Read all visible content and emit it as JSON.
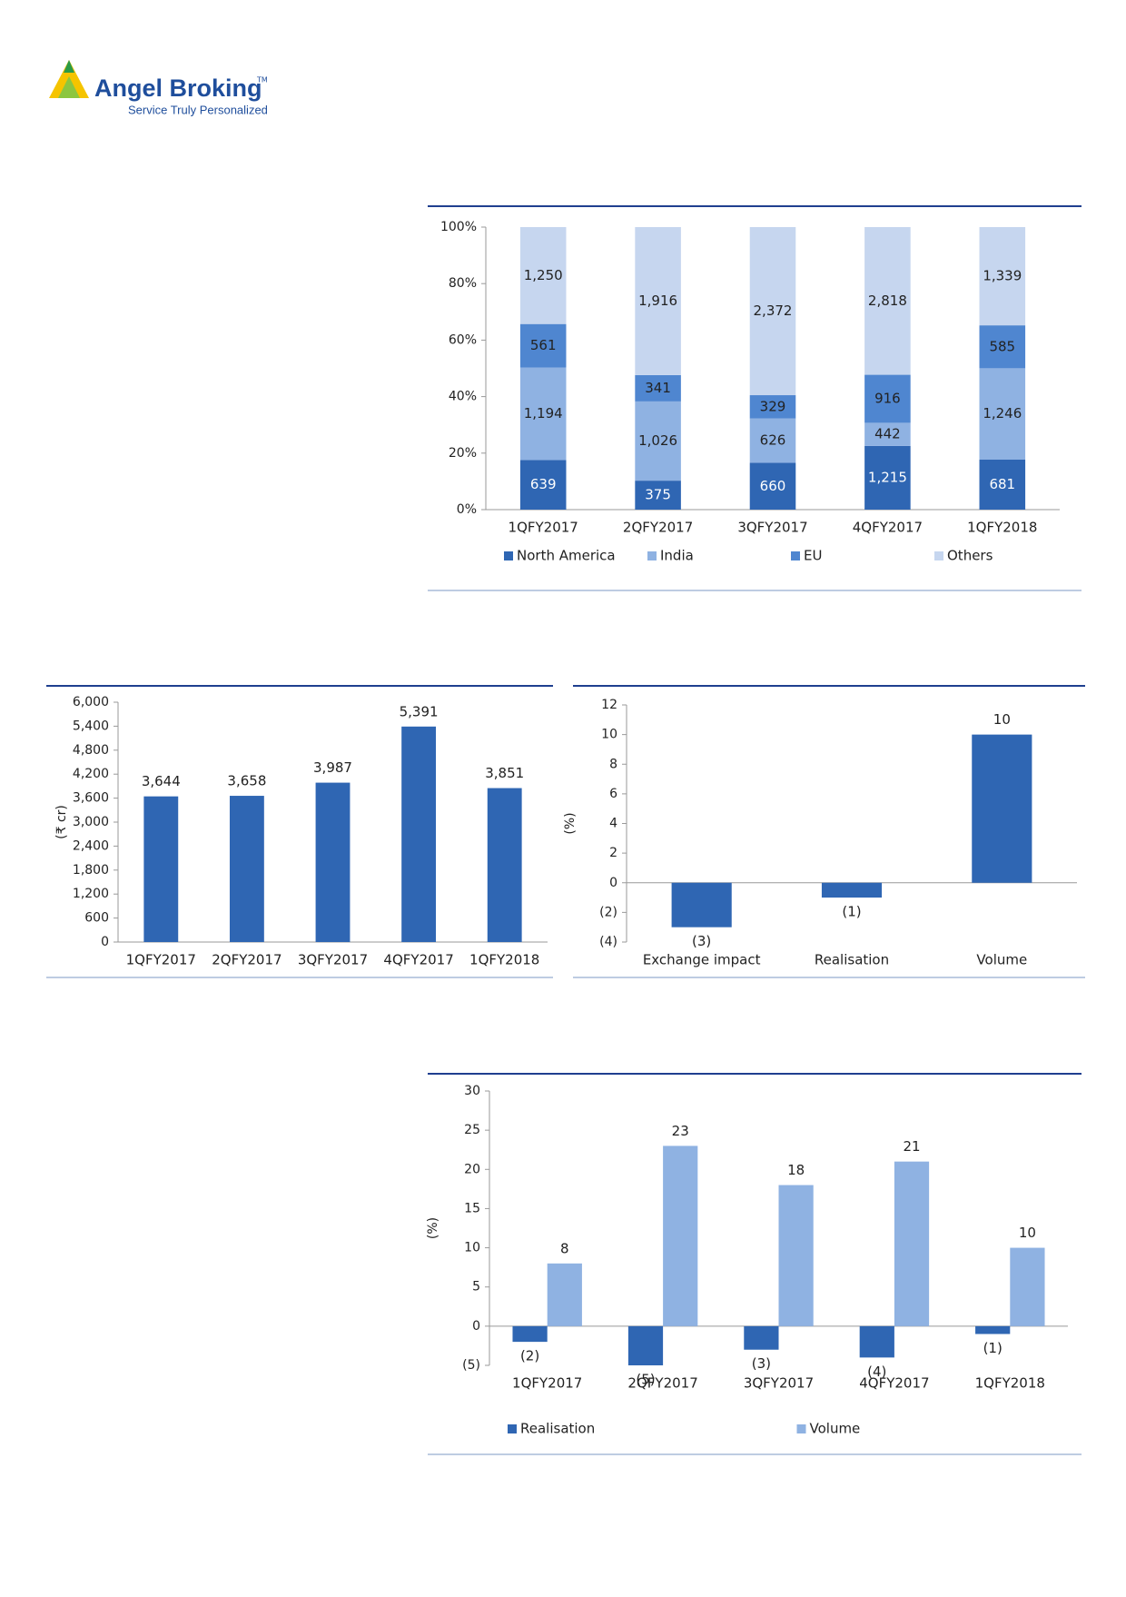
{
  "header": {
    "brand": "Angel Broking",
    "trademark": "TM",
    "tagline": "Service Truly Personalized"
  },
  "chart_data": [
    {
      "type": "stacked_percent_bar",
      "categories": [
        "1QFY2017",
        "2QFY2017",
        "3QFY2017",
        "4QFY2017",
        "1QFY2018"
      ],
      "series": [
        {
          "name": "North America",
          "color": "#2f66b3",
          "values": [
            639,
            375,
            660,
            1215,
            681
          ],
          "value_labels": [
            "639",
            "375",
            "660",
            "1,215",
            "681"
          ]
        },
        {
          "name": "India",
          "color": "#8fb2e2",
          "values": [
            1194,
            1026,
            626,
            442,
            1246
          ],
          "value_labels": [
            "1,194",
            "1,026",
            "626",
            "442",
            "1,246"
          ]
        },
        {
          "name": "EU",
          "color": "#4f86d0",
          "values": [
            561,
            341,
            329,
            916,
            585
          ],
          "value_labels": [
            "561",
            "341",
            "329",
            "916",
            "585"
          ]
        },
        {
          "name": "Others",
          "color": "#c6d6ef",
          "values": [
            1250,
            1916,
            2372,
            2818,
            1339
          ],
          "value_labels": [
            "1,250",
            "1,916",
            "2,372",
            "2,818",
            "1,339"
          ]
        }
      ],
      "ylim": [
        0,
        100
      ],
      "yticks": [
        {
          "value": 0,
          "label": "0%"
        },
        {
          "value": 20,
          "label": "20%"
        },
        {
          "value": 40,
          "label": "40%"
        },
        {
          "value": 60,
          "label": "60%"
        },
        {
          "value": 80,
          "label": "80%"
        },
        {
          "value": 100,
          "label": "100%"
        }
      ],
      "legend": "bottom"
    },
    {
      "type": "bar",
      "categories": [
        "1QFY2017",
        "2QFY2017",
        "3QFY2017",
        "4QFY2017",
        "1QFY2018"
      ],
      "values": [
        3644,
        3658,
        3987,
        5391,
        3851
      ],
      "value_labels": [
        "3,644",
        "3,658",
        "3,987",
        "5,391",
        "3,851"
      ],
      "color": "#2f66b3",
      "ylabel": "(₹ cr)",
      "ylim": [
        0,
        6000
      ],
      "yticks": [
        0,
        600,
        {
          "value": 1200,
          "label": "1,200"
        },
        {
          "value": 1800,
          "label": "1,800"
        },
        {
          "value": 2400,
          "label": "2,400"
        },
        {
          "value": 3000,
          "label": "3,000"
        },
        {
          "value": 3600,
          "label": "3,600"
        },
        {
          "value": 4200,
          "label": "4,200"
        },
        {
          "value": 4800,
          "label": "4,800"
        },
        {
          "value": 5400,
          "label": "5,400"
        },
        {
          "value": 6000,
          "label": "6,000"
        }
      ]
    },
    {
      "type": "bar",
      "categories": [
        "Exchange impact",
        "Realisation",
        "Volume"
      ],
      "values": [
        -3,
        -1,
        10
      ],
      "value_labels": [
        "(3)",
        "(1)",
        "10"
      ],
      "color": "#2f66b3",
      "ylabel": "(%)",
      "ylim": [
        -4,
        12
      ],
      "yticks": [
        {
          "value": -4,
          "label": "(4)"
        },
        {
          "value": -2,
          "label": "(2)"
        },
        0,
        2,
        4,
        6,
        8,
        10,
        12
      ]
    },
    {
      "type": "grouped_bar",
      "categories": [
        "1QFY2017",
        "2QFY2017",
        "3QFY2017",
        "4QFY2017",
        "1QFY2018"
      ],
      "series": [
        {
          "name": "Realisation",
          "color": "#2f66b3",
          "values": [
            -2,
            -5,
            -3,
            -4,
            -1
          ],
          "value_labels": [
            "(2)",
            "(5)",
            "(3)",
            "(4)",
            "(1)"
          ]
        },
        {
          "name": "Volume",
          "color": "#8fb2e2",
          "values": [
            8,
            23,
            18,
            21,
            10
          ]
        }
      ],
      "ylabel": "(%)",
      "ylim": [
        -5,
        30
      ],
      "yticks": [
        {
          "value": -5,
          "label": "(5)"
        },
        0,
        5,
        10,
        15,
        20,
        25,
        30
      ],
      "legend": "bottom"
    }
  ]
}
